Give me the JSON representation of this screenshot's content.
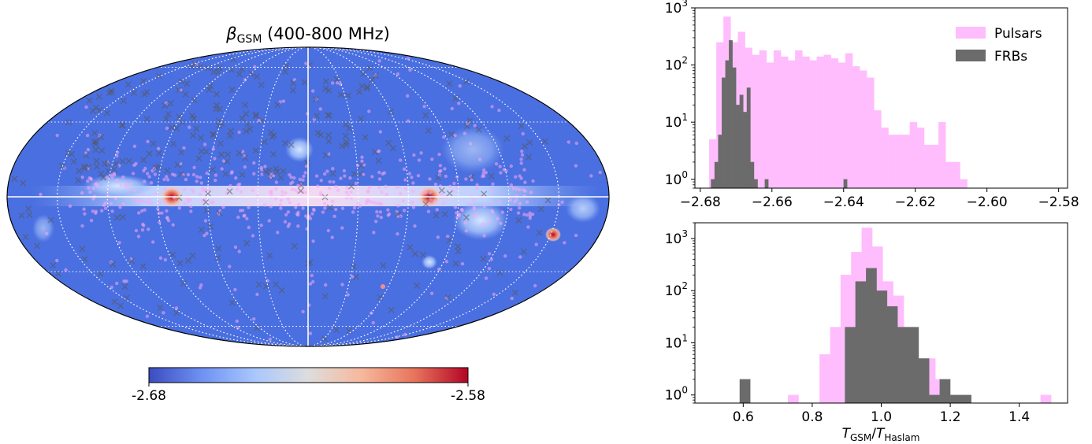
{
  "map": {
    "title_symbol": "β",
    "title_sub": "GSM",
    "title_rest": " (400-800 MHz)",
    "colorbar_min": "-2.68",
    "colorbar_max": "-2.58",
    "colormap": [
      "#3b4cc0",
      "#6f92f3",
      "#aac7fd",
      "#dddddd",
      "#f7b89c",
      "#e7745b",
      "#b40426"
    ],
    "background": "#4a6fe0",
    "pulsar_color": "#f9a7f5",
    "frb_color": "#555555"
  },
  "chart_data": [
    {
      "type": "bar",
      "title": "",
      "xlabel": "",
      "ylabel": "",
      "yscale": "log",
      "ylim": [
        0.7,
        1000
      ],
      "xlim": [
        -2.6815,
        -2.5775
      ],
      "xticks": [
        -2.68,
        -2.66,
        -2.64,
        -2.62,
        -2.6,
        -2.58
      ],
      "xtick_labels": [
        "−2.68",
        "−2.66",
        "−2.64",
        "−2.62",
        "−2.60",
        "−2.58"
      ],
      "yticks": [
        1,
        10,
        100,
        1000
      ],
      "ytick_labels": [
        "10",
        "10",
        "10",
        "10"
      ],
      "ytick_exps": [
        "0",
        "1",
        "2",
        "3"
      ],
      "legend": {
        "position": "top-right",
        "entries": [
          "Pulsars",
          "FRBs"
        ]
      },
      "series": [
        {
          "name": "Pulsars",
          "color": "#ffbdfd",
          "bin_start": -2.6775,
          "bin_width": 0.002,
          "counts": [
            5,
            250,
            700,
            250,
            380,
            200,
            150,
            180,
            110,
            180,
            140,
            120,
            180,
            140,
            120,
            140,
            150,
            130,
            110,
            160,
            95,
            80,
            60,
            16,
            8,
            6,
            6,
            6,
            10,
            8,
            4,
            4,
            10,
            2,
            2,
            1
          ]
        },
        {
          "name": "FRBs",
          "color": "#6b6b6b",
          "bin_start": -2.677,
          "bin_width": 0.001,
          "counts": [
            1,
            2,
            6,
            60,
            120,
            270,
            90,
            20,
            30,
            15,
            40,
            2,
            1,
            0,
            0,
            1,
            0,
            0,
            0,
            0,
            0,
            0,
            0,
            0,
            0,
            0,
            0,
            0,
            0,
            0,
            0,
            0,
            0,
            0,
            0,
            0,
            0,
            1
          ]
        }
      ]
    },
    {
      "type": "bar",
      "title": "",
      "xlabel_main1": "T",
      "xlabel_sub1": "GSM",
      "xlabel_slash": "/",
      "xlabel_main2": "T",
      "xlabel_sub2": "Haslam",
      "ylabel": "",
      "yscale": "log",
      "ylim": [
        0.7,
        2000
      ],
      "xlim": [
        0.46,
        1.54
      ],
      "xticks": [
        0.6,
        0.8,
        1.0,
        1.2,
        1.4
      ],
      "xtick_labels": [
        "0.6",
        "0.8",
        "1.0",
        "1.2",
        "1.4"
      ],
      "yticks": [
        1,
        10,
        100,
        1000
      ],
      "ytick_labels": [
        "10",
        "10",
        "10",
        "10"
      ],
      "ytick_exps": [
        "0",
        "1",
        "2",
        "3"
      ],
      "series": [
        {
          "name": "Pulsars",
          "color": "#ffbdfd",
          "bin_start": 0.73,
          "bin_width": 0.0305,
          "counts": [
            1,
            0,
            0,
            6,
            20,
            200,
            550,
            1600,
            700,
            150,
            80,
            20,
            5,
            5,
            2,
            0,
            0,
            0,
            0,
            0,
            0,
            0,
            0,
            0,
            1
          ]
        },
        {
          "name": "FRBs",
          "color": "#6b6b6b",
          "bin_start": 0.59,
          "bin_width": 0.0305,
          "counts": [
            2,
            0,
            0,
            0,
            0,
            0,
            0,
            0,
            0,
            0,
            20,
            150,
            270,
            100,
            50,
            20,
            20,
            5,
            1,
            2,
            1,
            1
          ]
        }
      ]
    }
  ]
}
